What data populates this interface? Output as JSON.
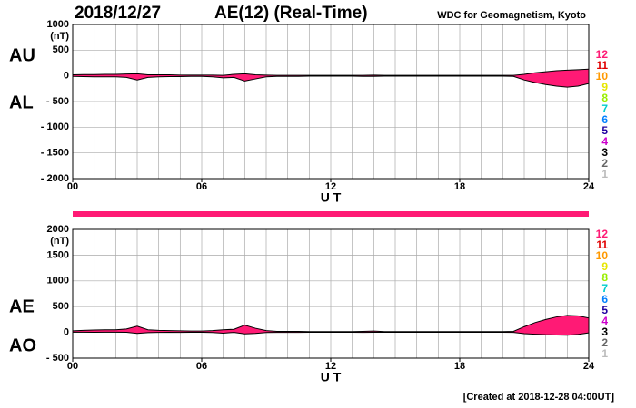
{
  "header": {
    "date": "2018/12/27",
    "title": "AE(12) (Real-Time)",
    "source": "WDC for Geomagnetism, Kyoto"
  },
  "footer": "[Created at 2018-12-28 04:00UT]",
  "station_legend": [
    {
      "label": "12",
      "color": "#ff1a75"
    },
    {
      "label": "11",
      "color": "#e00000"
    },
    {
      "label": "10",
      "color": "#ff9900"
    },
    {
      "label": "9",
      "color": "#e6e600"
    },
    {
      "label": "8",
      "color": "#99ee00"
    },
    {
      "label": "7",
      "color": "#00cccc"
    },
    {
      "label": "6",
      "color": "#0080ff"
    },
    {
      "label": "5",
      "color": "#2000a0"
    },
    {
      "label": "4",
      "color": "#cc00cc"
    },
    {
      "label": "3",
      "color": "#000000"
    },
    {
      "label": "2",
      "color": "#666666"
    },
    {
      "label": "1",
      "color": "#bbbbbb"
    }
  ],
  "chart_data": [
    {
      "type": "band",
      "y_unit": "(nT)",
      "x_label": "U T",
      "fill": "#ff1a75",
      "x": [
        0,
        0.5,
        1,
        1.5,
        2,
        2.5,
        3,
        3.5,
        4,
        4.5,
        5,
        5.5,
        6,
        6.5,
        7,
        7.5,
        8,
        8.5,
        9,
        9.5,
        10,
        10.5,
        11,
        11.5,
        12,
        12.5,
        13,
        13.5,
        14,
        14.5,
        15,
        15.5,
        16,
        16.5,
        17,
        17.5,
        18,
        18.5,
        19,
        19.5,
        20,
        20.5,
        21,
        21.5,
        22,
        22.5,
        23,
        23.5,
        24
      ],
      "series": [
        {
          "name": "AU",
          "color": "#000000",
          "values": [
            20,
            25,
            25,
            30,
            30,
            35,
            40,
            20,
            20,
            20,
            15,
            15,
            15,
            15,
            10,
            30,
            40,
            20,
            15,
            10,
            10,
            10,
            10,
            10,
            10,
            10,
            10,
            10,
            15,
            10,
            10,
            10,
            10,
            10,
            10,
            10,
            10,
            10,
            10,
            10,
            10,
            10,
            30,
            60,
            80,
            100,
            110,
            120,
            130
          ]
        },
        {
          "name": "AL",
          "color": "#000000",
          "values": [
            -10,
            -15,
            -20,
            -20,
            -20,
            -30,
            -80,
            -30,
            -20,
            -15,
            -15,
            -10,
            -10,
            -20,
            -40,
            -30,
            -100,
            -60,
            -20,
            -10,
            -10,
            -10,
            -5,
            -5,
            -5,
            -5,
            -5,
            -10,
            -10,
            -5,
            -5,
            -5,
            -5,
            -5,
            -5,
            -5,
            -5,
            -5,
            -5,
            -5,
            -5,
            -10,
            -80,
            -130,
            -170,
            -200,
            -220,
            -200,
            -150
          ]
        }
      ],
      "xlim": [
        0,
        24
      ],
      "xticks": [
        {
          "value": 0,
          "label": "00"
        },
        {
          "value": 6,
          "label": "06"
        },
        12,
        18,
        24
      ],
      "ylim": [
        -2000,
        1000
      ],
      "yticks": [
        1000,
        500,
        0,
        {
          "value": -500,
          "label": "- 500"
        },
        {
          "value": -1000,
          "label": "- 1000"
        },
        {
          "value": -1500,
          "label": "- 1500"
        },
        {
          "value": -2000,
          "label": "- 2000"
        }
      ],
      "grid": true
    },
    {
      "type": "band",
      "y_unit": "(nT)",
      "x_label": "U T",
      "fill": "#ff1a75",
      "x": [
        0,
        0.5,
        1,
        1.5,
        2,
        2.5,
        3,
        3.5,
        4,
        4.5,
        5,
        5.5,
        6,
        6.5,
        7,
        7.5,
        8,
        8.5,
        9,
        9.5,
        10,
        10.5,
        11,
        11.5,
        12,
        12.5,
        13,
        13.5,
        14,
        14.5,
        15,
        15.5,
        16,
        16.5,
        17,
        17.5,
        18,
        18.5,
        19,
        19.5,
        20,
        20.5,
        21,
        21.5,
        22,
        22.5,
        23,
        23.5,
        24
      ],
      "series": [
        {
          "name": "AE",
          "color": "#000000",
          "values": [
            30,
            40,
            45,
            50,
            50,
            65,
            120,
            50,
            40,
            35,
            30,
            25,
            25,
            35,
            50,
            60,
            140,
            80,
            35,
            20,
            20,
            20,
            15,
            15,
            15,
            15,
            15,
            20,
            25,
            15,
            15,
            15,
            15,
            15,
            15,
            15,
            15,
            15,
            15,
            15,
            15,
            20,
            110,
            190,
            250,
            300,
            330,
            320,
            280
          ]
        },
        {
          "name": "AO",
          "color": "#000000",
          "values": [
            5,
            5,
            2.5,
            5,
            5,
            2.5,
            -20,
            -5,
            0,
            2.5,
            0,
            2.5,
            2.5,
            -2.5,
            -15,
            0,
            -30,
            -20,
            -2.5,
            0,
            0,
            0,
            2.5,
            2.5,
            2.5,
            2.5,
            2.5,
            0,
            2.5,
            2.5,
            2.5,
            2.5,
            2.5,
            2.5,
            2.5,
            2.5,
            2.5,
            2.5,
            2.5,
            2.5,
            2.5,
            0,
            -25,
            -35,
            -45,
            -50,
            -55,
            -40,
            -10
          ]
        }
      ],
      "xlim": [
        0,
        24
      ],
      "xticks": [
        {
          "value": 0,
          "label": "00"
        },
        {
          "value": 6,
          "label": "06"
        },
        12,
        18,
        24
      ],
      "ylim": [
        -500,
        2000
      ],
      "yticks": [
        2000,
        1500,
        1000,
        500,
        0,
        {
          "value": -500,
          "label": "- 500"
        }
      ],
      "grid": true
    }
  ]
}
